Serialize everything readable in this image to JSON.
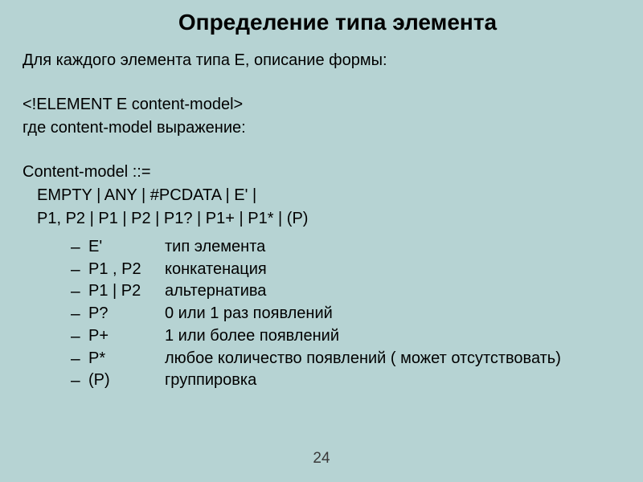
{
  "title": "Определение типа элемента",
  "line1": "Для каждого элемента типа E, описание формы:",
  "line2": "<!ELEMENT   E content-model>",
  "line3": "где content-model выражение:",
  "line4": "Content-model ::=",
  "line5": "EMPTY  | ANY | #PCDATA | E' |",
  "line6": "P1, P2 | P1 | P2 |  P1?  | P1+  | P1* | (P)",
  "items": [
    {
      "term": "E'",
      "desc": "тип элемента"
    },
    {
      "term": "P1 , P2",
      "desc": "конкатенация"
    },
    {
      "term": "P1 | P2",
      "desc": "альтернатива"
    },
    {
      "term": "P?",
      "desc": "0 или 1 раз появлений"
    },
    {
      "term": "P+",
      "desc": "1 или более появлений"
    },
    {
      "term": "P*",
      "desc": "любое количество появлений ( может отсутствовать)"
    },
    {
      "term": "(P)",
      "desc": "группировка"
    }
  ],
  "pageNumber": "24"
}
